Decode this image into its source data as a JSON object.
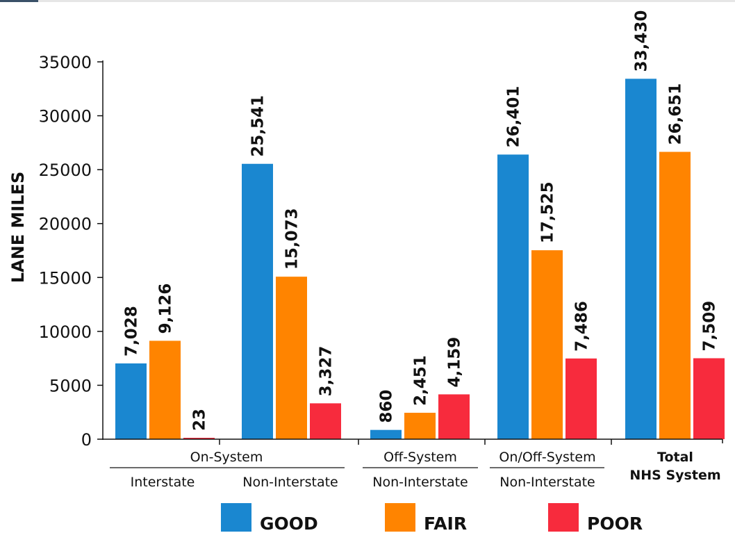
{
  "chart_data": {
    "type": "bar",
    "title": "",
    "xlabel": "",
    "ylabel": "LANE MILES",
    "ylim": [
      0,
      35000
    ],
    "yticks": [
      0,
      5000,
      10000,
      15000,
      20000,
      25000,
      30000,
      35000
    ],
    "grid": false,
    "legend_position": "bottom",
    "groups": [
      {
        "label": "On-System",
        "subcategories": [
          "Interstate",
          "Non-Interstate"
        ]
      },
      {
        "label": "Off-System",
        "subcategories": [
          "Non-Interstate"
        ]
      },
      {
        "label": "On/Off-System",
        "subcategories": [
          "Non-Interstate"
        ]
      },
      {
        "label": "Total\nNHS System",
        "subcategories": []
      }
    ],
    "categories": [
      "Interstate",
      "Non-Interstate",
      "Non-Interstate",
      "Non-Interstate",
      "Total NHS System"
    ],
    "series": [
      {
        "name": "GOOD",
        "color": "#1a87d0",
        "values": [
          7028,
          25541,
          860,
          26401,
          33430
        ],
        "labels": [
          "7,028",
          "25,541",
          "860",
          "26,401",
          "33,430"
        ]
      },
      {
        "name": "FAIR",
        "color": "#ff8400",
        "values": [
          9126,
          15073,
          2451,
          17525,
          26651
        ],
        "labels": [
          "9,126",
          "15,073",
          "2,451",
          "17,525",
          "26,651"
        ]
      },
      {
        "name": "POOR",
        "color": "#f72b3d",
        "values": [
          23,
          3327,
          4159,
          7486,
          7509
        ],
        "labels": [
          "23",
          "3,327",
          "4,159",
          "7,486",
          "7,509"
        ]
      }
    ]
  }
}
